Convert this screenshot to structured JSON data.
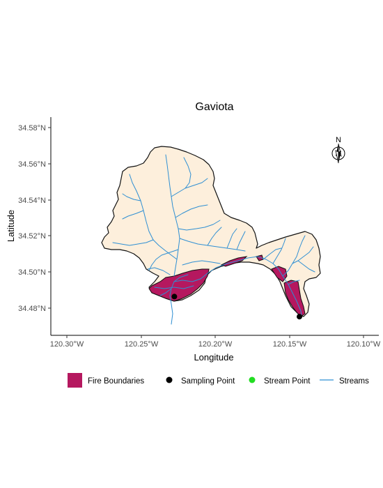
{
  "title": "Gaviota",
  "x_axis": {
    "label": "Longitude",
    "ticks": [
      "120.30°W",
      "120.25°W",
      "120.20°W",
      "120.15°W",
      "120.10°W"
    ]
  },
  "y_axis": {
    "label": "Latitude",
    "ticks": [
      "34.48°N",
      "34.50°N",
      "34.52°N",
      "34.54°N",
      "34.56°N",
      "34.58°N"
    ]
  },
  "north_arrow_label": "N",
  "legend": {
    "fire": "Fire Boundaries",
    "sampling": "Sampling Point",
    "stream_point": "Stream Point",
    "streams": "Streams"
  },
  "colors": {
    "watershed_fill": "#fdefdc",
    "fire_fill": "#b5185f",
    "stream": "#2f8fd3",
    "sampling_point": "#000000",
    "stream_point": "#22dd22"
  },
  "sampling_points": [
    {
      "lon": -120.2275,
      "lat": 34.4864
    },
    {
      "lon": -120.1432,
      "lat": 34.4753
    }
  ]
}
